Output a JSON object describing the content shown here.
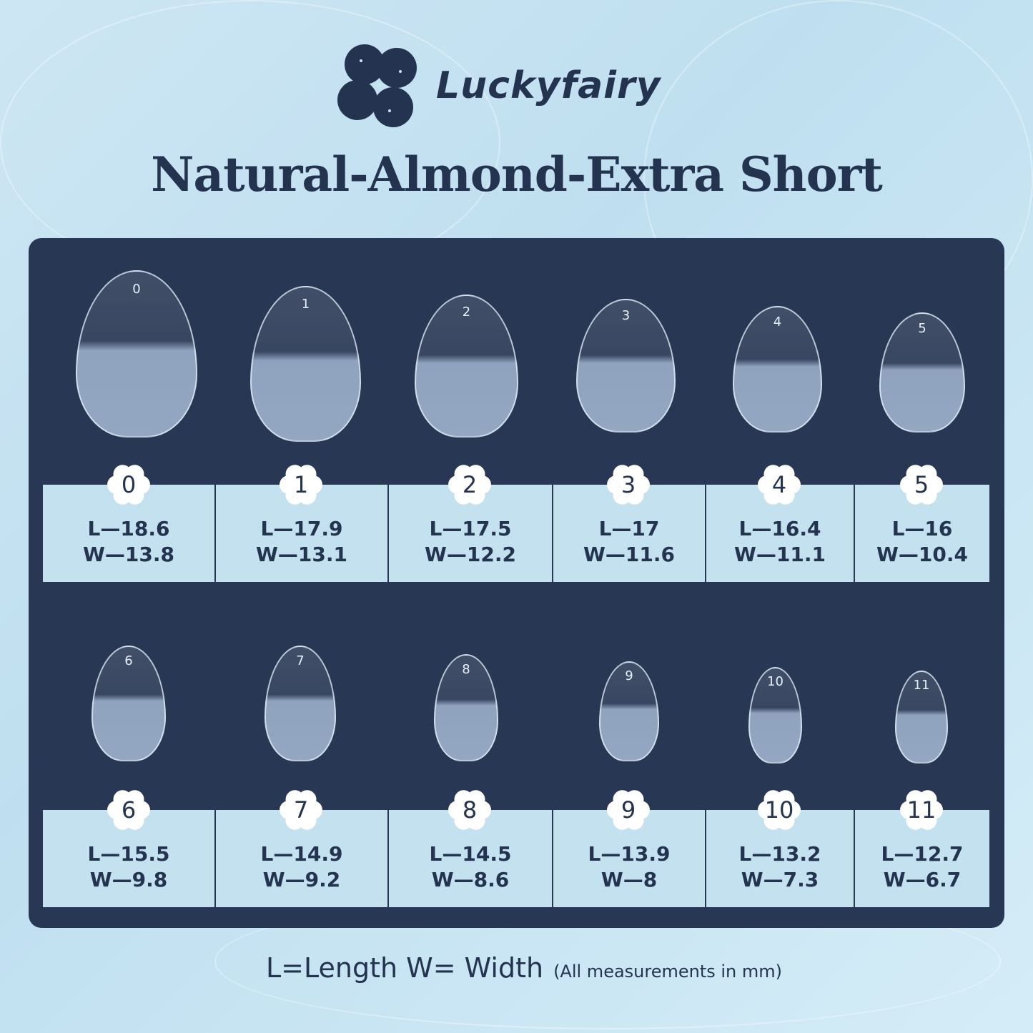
{
  "brand": {
    "name": "Luckyfairy",
    "logo_icon": "four-leaf-clover-icon"
  },
  "title": "Natural-Almond-Extra Short",
  "sizes": [
    {
      "size": "0",
      "length": "L—18.6",
      "width": "W—13.8"
    },
    {
      "size": "1",
      "length": "L—17.9",
      "width": "W—13.1"
    },
    {
      "size": "2",
      "length": "L—17.5",
      "width": "W—12.2"
    },
    {
      "size": "3",
      "length": "L—17",
      "width": "W—11.6"
    },
    {
      "size": "4",
      "length": "L—16.4",
      "width": "W—11.1"
    },
    {
      "size": "5",
      "length": "L—16",
      "width": "W—10.4"
    },
    {
      "size": "6",
      "length": "L—15.5",
      "width": "W—9.8"
    },
    {
      "size": "7",
      "length": "L—14.9",
      "width": "W—9.2"
    },
    {
      "size": "8",
      "length": "L—14.5",
      "width": "W—8.6"
    },
    {
      "size": "9",
      "length": "L—13.9",
      "width": "W—8"
    },
    {
      "size": "10",
      "length": "L—13.2",
      "width": "W—7.3"
    },
    {
      "size": "11",
      "length": "L—12.7",
      "width": "W—6.7"
    }
  ],
  "footer": {
    "legend": "L=Length W= Width",
    "note": "(All measurements in mm)"
  },
  "colors": {
    "panel": "#283754",
    "cell": "#c4e1f0",
    "text": "#24334f",
    "background": "#cde6f3"
  }
}
